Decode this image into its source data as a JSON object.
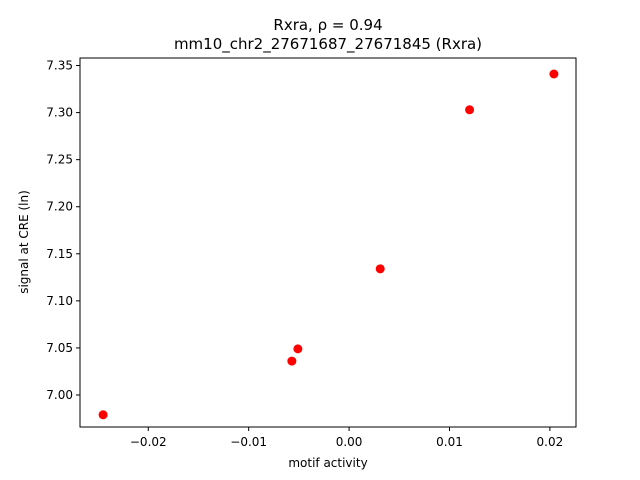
{
  "chart_data": {
    "type": "scatter",
    "title": "Rxra, ρ = 0.94",
    "subtitle": "mm10_chr2_27671687_27671845 (Rxra)",
    "xlabel": "motif activity",
    "ylabel": "signal at CRE (ln)",
    "xlim": [
      -0.0268,
      0.0226
    ],
    "ylim": [
      6.966,
      7.358
    ],
    "xticks": [
      -0.02,
      -0.01,
      0.0,
      0.01,
      0.02
    ],
    "xtick_labels": [
      "−0.02",
      "−0.01",
      "0.00",
      "0.01",
      "0.02"
    ],
    "yticks": [
      7.0,
      7.05,
      7.1,
      7.15,
      7.2,
      7.25,
      7.3,
      7.35
    ],
    "ytick_labels": [
      "7.00",
      "7.05",
      "7.10",
      "7.15",
      "7.20",
      "7.25",
      "7.30",
      "7.35"
    ],
    "grid": false,
    "series": [
      {
        "color": "#ff0000",
        "x": [
          -0.0245,
          -0.0057,
          -0.0051,
          0.0031,
          0.012,
          0.0204
        ],
        "y": [
          6.979,
          7.036,
          7.049,
          7.134,
          7.303,
          7.341
        ]
      }
    ]
  }
}
